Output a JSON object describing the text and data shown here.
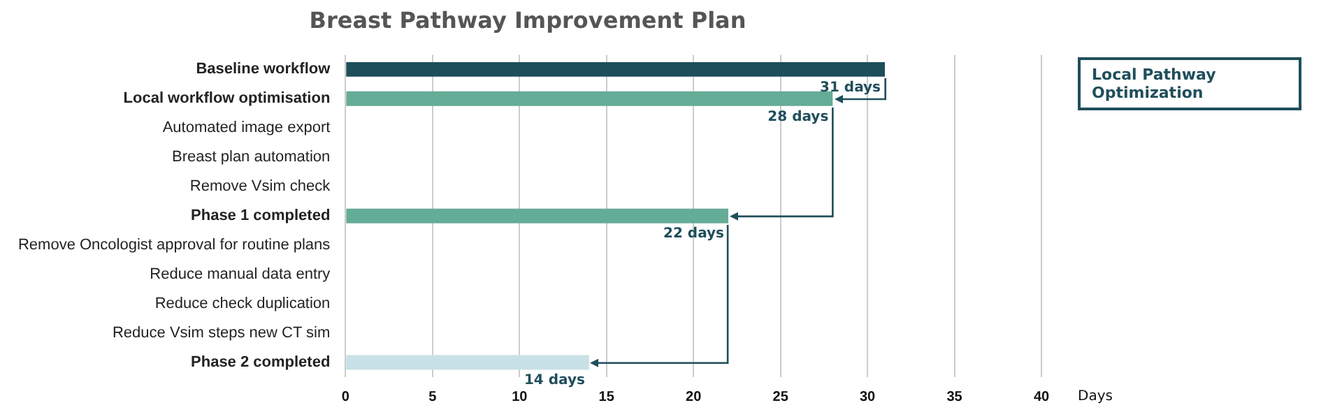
{
  "chart_data": {
    "type": "bar",
    "orientation": "horizontal",
    "title": "Breast Pathway Improvement Plan",
    "xlabel": "Days",
    "categories": [
      "Baseline workflow",
      "Local workflow optimisation",
      "Automated image export",
      "Breast plan automation",
      "Remove Vsim check",
      "Phase 1 completed",
      "Remove Oncologist approval for routine plans",
      "Reduce manual data entry",
      "Reduce check duplication",
      "Reduce Vsim steps new CT sim",
      "Phase 2 completed"
    ],
    "values": [
      31,
      28,
      null,
      null,
      null,
      22,
      null,
      null,
      null,
      null,
      14
    ],
    "colors": [
      "#1f4e5b",
      "#65ac97",
      null,
      null,
      null,
      "#65ac97",
      null,
      null,
      null,
      null,
      "#c8e1e7"
    ],
    "value_labels": [
      "31 days",
      "28 days",
      null,
      null,
      null,
      "22 days",
      null,
      null,
      null,
      null,
      "14 days"
    ],
    "xlim": [
      0,
      40
    ],
    "xticks": [
      0,
      5,
      10,
      15,
      20,
      25,
      30,
      35,
      40
    ],
    "grid": "x",
    "legend": false,
    "annotations": [
      "Local Pathway Optimization"
    ]
  }
}
